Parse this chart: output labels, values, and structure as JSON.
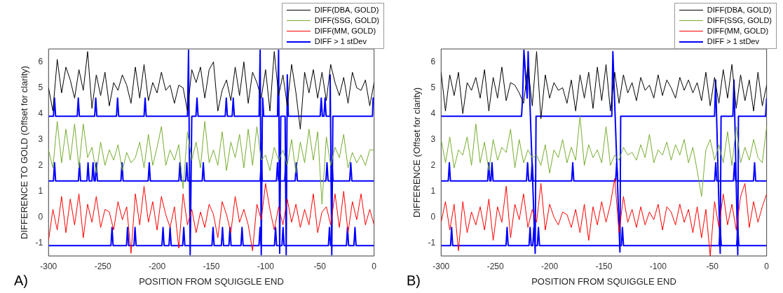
{
  "chart_data": [
    {
      "type": "line",
      "annotations": [
        "A)"
      ],
      "xlabel": "POSITION FROM SQUIGGLE END",
      "ylabel": "DIFFERENCE TO GOLD (Offset for clarity)",
      "legend": "top right",
      "xlim": [
        -300,
        0
      ],
      "xticks": [
        -300,
        -250,
        -200,
        -150,
        -100,
        -50,
        0
      ],
      "ylim": [
        -1.5,
        6.5
      ],
      "yticks": [
        -1,
        0,
        1,
        2,
        3,
        4,
        5,
        6
      ],
      "x": [
        -300,
        -296,
        -292,
        -288,
        -284,
        -280,
        -276,
        -272,
        -268,
        -264,
        -260,
        -256,
        -252,
        -248,
        -244,
        -240,
        -236,
        -232,
        -228,
        -224,
        -220,
        -216,
        -212,
        -208,
        -204,
        -200,
        -196,
        -192,
        -188,
        -184,
        -180,
        -176,
        -172,
        -168,
        -164,
        -160,
        -156,
        -152,
        -148,
        -144,
        -140,
        -136,
        -132,
        -128,
        -124,
        -120,
        -116,
        -112,
        -108,
        -104,
        -100,
        -96,
        -92,
        -88,
        -84,
        -80,
        -76,
        -72,
        -68,
        -64,
        -60,
        -56,
        -52,
        -48,
        -44,
        -40,
        -36,
        -32,
        -28,
        -24,
        -20,
        -16,
        -12,
        -8,
        -4,
        0
      ],
      "series": [
        {
          "name": "DIFF(DBA, GOLD)",
          "color": "#000000",
          "values": [
            5.0,
            4.1,
            6.1,
            4.8,
            5.8,
            5.3,
            4.6,
            5.7,
            4.9,
            6.4,
            4.2,
            5.5,
            4.7,
            5.6,
            4.3,
            5.2,
            4.9,
            5.5,
            5.1,
            4.4,
            5.8,
            4.6,
            5.9,
            4.5,
            5.2,
            4.8,
            5.6,
            4.9,
            5.1,
            4.4,
            5.1,
            5.0,
            4.1,
            5.7,
            5.2,
            5.8,
            4.6,
            5.7,
            6.0,
            4.1,
            4.9,
            5.3,
            4.5,
            5.8,
            4.7,
            6.0,
            4.4,
            5.6,
            5.2,
            4.6,
            5.7,
            4.1,
            6.4,
            4.7,
            5.5,
            4.3,
            5.9,
            4.8,
            3.4,
            5.6,
            4.8,
            5.7,
            4.6,
            5.6,
            4.5,
            5.9,
            5.2,
            4.7,
            5.4,
            4.4,
            5.6,
            5.0,
            4.9,
            5.3,
            4.3,
            5.2
          ]
        },
        {
          "name": "DIFF(SSG, GOLD)",
          "color": "#77ac30",
          "values": [
            2.6,
            1.9,
            3.7,
            2.1,
            3.4,
            2.2,
            3.6,
            1.9,
            3.6,
            2.3,
            2.7,
            1.7,
            2.9,
            2.0,
            2.6,
            2.2,
            2.8,
            1.8,
            2.5,
            2.1,
            2.3,
            2.9,
            1.9,
            3.2,
            2.0,
            2.7,
            3.5,
            2.0,
            2.6,
            2.2,
            2.8,
            1.1,
            3.3,
            2.2,
            2.9,
            1.9,
            3.7,
            2.1,
            2.6,
            2.0,
            3.3,
            1.8,
            2.9,
            2.3,
            3.2,
            1.9,
            3.4,
            2.0,
            3.5,
            2.2,
            2.4,
            1.8,
            2.7,
            2.2,
            2.6,
            2.0,
            3.0,
            1.7,
            2.9,
            2.1,
            3.4,
            2.2,
            3.3,
            0.5,
            3.1,
            2.0,
            2.7,
            2.3,
            3.2,
            1.9,
            2.5,
            2.1,
            2.4,
            2.0,
            2.6,
            2.6
          ]
        },
        {
          "name": "DIFF(MM, GOLD)",
          "color": "#ff0000",
          "values": [
            -0.9,
            0.3,
            -0.5,
            0.8,
            -0.6,
            0.7,
            -0.3,
            0.9,
            -0.8,
            0.5,
            -0.2,
            0.8,
            -0.4,
            0.3,
            0.2,
            -0.5,
            0.6,
            -0.1,
            0.4,
            -1.4,
            0.9,
            -0.3,
            1.2,
            -0.2,
            0.6,
            -0.5,
            0.8,
            0.1,
            -0.4,
            0.4,
            -1.2,
            0.9,
            -0.3,
            0.3,
            -0.6,
            0.2,
            -0.4,
            0.5,
            0.1,
            -0.8,
            0.6,
            0.1,
            -0.6,
            0.8,
            -0.2,
            0.3,
            -0.3,
            -1.3,
            0.5,
            -0.1,
            1.3,
            0.3,
            -0.5,
            0.4,
            -0.3,
            0.7,
            -0.2,
            0.5,
            -0.4,
            0.3,
            -0.3,
            0.9,
            -0.6,
            0.2,
            0.4,
            -0.3,
            0.9,
            -0.4,
            1.0,
            -0.6,
            0.6,
            -0.1,
            0.9,
            -0.3,
            0.3,
            -0.3
          ]
        },
        {
          "name": "DIFF > 1 stDev",
          "color": "#0000ff",
          "x": [
            -300,
            -295.5,
            -294.5,
            -293.5,
            -273.6,
            -272.6,
            -271.6,
            -257.5,
            -256.5,
            -255.5,
            -237.4,
            -236.4,
            -235.4,
            -212,
            -211,
            -210,
            -172,
            -171,
            -169.5,
            -168,
            -164.2,
            -163.2,
            -162.2,
            -137.2,
            -136.2,
            -135.2,
            -130.8,
            -129.8,
            -128.8,
            -106,
            -105,
            -104,
            -103,
            -102.7,
            -101.7,
            -89,
            -88,
            -87,
            -86,
            -82,
            -81,
            -80,
            -79,
            -49.7,
            -48.7,
            -47.7,
            -46.2,
            -45.2,
            -44.2,
            -41,
            -40.5,
            -39,
            -38,
            -1.5,
            -0.9,
            0
          ],
          "values": [
            3.9,
            3.9,
            4.6,
            3.9,
            3.9,
            4.6,
            3.9,
            3.9,
            4.6,
            3.9,
            3.9,
            4.6,
            3.9,
            3.9,
            4.6,
            3.9,
            3.9,
            6.45,
            -1.45,
            3.9,
            3.9,
            4.6,
            3.9,
            3.9,
            4.6,
            3.9,
            3.9,
            4.6,
            3.9,
            3.9,
            6.45,
            -1.45,
            3.9,
            4.6,
            3.9,
            3.9,
            6.45,
            -1.4,
            3.9,
            3.9,
            -1.45,
            5.5,
            3.9,
            3.9,
            4.6,
            3.9,
            3.9,
            4.6,
            3.9,
            3.9,
            5.5,
            -1.45,
            3.9,
            3.9,
            4.6,
            4.6
          ]
        },
        {
          "color": "#0000ff",
          "x": [
            -300,
            -295.5,
            -294.5,
            -293.5,
            -272.5,
            -271.5,
            -270.5,
            -264.6,
            -263.6,
            -262.6,
            -260,
            -259,
            -258,
            -257,
            -256,
            -255,
            -233.3,
            -232.3,
            -231.3,
            -208.2,
            -207.2,
            -206.2,
            -179.9,
            -178.9,
            -177.9,
            -173.6,
            -172.6,
            -171.6,
            -158.4,
            -157.4,
            -156.4,
            -105,
            -104,
            -103,
            -90,
            -89,
            -88,
            -82.4,
            -81.4,
            -80.4,
            -72.7,
            -71.7,
            -70.7,
            -44.4,
            -43.4,
            -42.4,
            -39.8,
            -38.8,
            -37.8,
            -22.5,
            -21.5,
            -20.5,
            0
          ],
          "values": [
            1.4,
            1.4,
            2.1,
            1.4,
            1.4,
            2.1,
            1.4,
            1.4,
            2.1,
            1.4,
            1.4,
            2.1,
            1.4,
            1.4,
            2.1,
            1.4,
            1.4,
            2.1,
            1.4,
            1.4,
            2.1,
            1.4,
            1.4,
            2.1,
            1.4,
            1.4,
            2.1,
            1.4,
            1.4,
            2.1,
            1.4,
            1.4,
            2.1,
            1.4,
            1.4,
            2.1,
            1.4,
            1.4,
            2.1,
            1.4,
            1.4,
            2.1,
            1.4,
            1.4,
            2.1,
            1.4,
            1.4,
            2.1,
            1.4,
            1.4,
            2.1,
            1.4,
            1.4
          ]
        },
        {
          "color": "#0000ff",
          "x": [
            -300,
            -242.5,
            -241.5,
            -240.5,
            -228.2,
            -227.2,
            -226.2,
            -221.3,
            -220.3,
            -219.3,
            -195.5,
            -194.5,
            -193.5,
            -189,
            -188,
            -187,
            -176.4,
            -175.4,
            -174.4,
            -149.4,
            -148.4,
            -147.4,
            -140.7,
            -139.7,
            -138.7,
            -133.8,
            -132.8,
            -131.8,
            -122.7,
            -121.7,
            -120.7,
            -106.1,
            -105.1,
            -104.1,
            -91.8,
            -90.8,
            -89.8,
            -84.9,
            -83.9,
            -82.9,
            -42.1,
            -41.1,
            -40.1,
            -25.5,
            -24.5,
            -23.5,
            -18.6,
            -17.6,
            -16.6,
            0
          ],
          "values": [
            -1.1,
            -1.1,
            -0.4,
            -1.1,
            -1.1,
            -0.4,
            -1.1,
            -1.1,
            -0.4,
            -1.1,
            -1.1,
            -0.4,
            -1.1,
            -1.1,
            -0.4,
            -1.1,
            -1.1,
            -0.4,
            -1.1,
            -1.1,
            -0.4,
            -1.1,
            -1.1,
            -0.4,
            -1.1,
            -1.1,
            -0.4,
            -1.1,
            -1.1,
            -0.4,
            -1.1,
            -1.1,
            -0.4,
            -1.1,
            -1.1,
            -0.4,
            -1.1,
            -1.1,
            -0.4,
            -1.1,
            -1.1,
            -0.4,
            -1.1,
            -1.1,
            -0.4,
            -1.1,
            -1.1,
            -0.4,
            -1.1,
            -1.1
          ]
        }
      ]
    },
    {
      "type": "line",
      "annotations": [
        "B)"
      ],
      "xlabel": "POSITION FROM SQUIGGLE END",
      "ylabel": "DIFFERENCE (Offset for clarity)",
      "legend": "top right",
      "xlim": [
        -300,
        0
      ],
      "xticks": [
        -300,
        -250,
        -200,
        -150,
        -100,
        -50,
        0
      ],
      "ylim": [
        -1.5,
        6.5
      ],
      "yticks": [
        -1,
        0,
        1,
        2,
        3,
        4,
        5,
        6
      ],
      "x": [
        -300,
        -296,
        -292,
        -288,
        -284,
        -280,
        -276,
        -272,
        -268,
        -264,
        -260,
        -256,
        -252,
        -248,
        -244,
        -240,
        -236,
        -232,
        -228,
        -224,
        -220,
        -216,
        -212,
        -208,
        -204,
        -200,
        -196,
        -192,
        -188,
        -184,
        -180,
        -176,
        -172,
        -168,
        -164,
        -160,
        -156,
        -152,
        -148,
        -144,
        -140,
        -136,
        -132,
        -128,
        -124,
        -120,
        -116,
        -112,
        -108,
        -104,
        -100,
        -96,
        -92,
        -88,
        -84,
        -80,
        -76,
        -72,
        -68,
        -64,
        -60,
        -56,
        -52,
        -48,
        -44,
        -40,
        -36,
        -32,
        -28,
        -24,
        -20,
        -16,
        -12,
        -8,
        -4,
        0
      ],
      "series": [
        {
          "name": "DIFF(DBA, GOLD)",
          "color": "#000000",
          "values": [
            5.6,
            4.1,
            5.5,
            4.7,
            5.6,
            4.0,
            5.2,
            4.9,
            5.4,
            4.6,
            5.7,
            4.1,
            5.4,
            4.6,
            5.8,
            4.5,
            5.2,
            5.1,
            4.8,
            4.4,
            5.8,
            4.3,
            6.4,
            3.8,
            5.5,
            4.6,
            5.2,
            4.9,
            5.0,
            4.4,
            5.3,
            4.1,
            5.5,
            4.6,
            5.6,
            4.2,
            5.8,
            4.5,
            5.9,
            4.1,
            5.6,
            4.4,
            5.5,
            4.8,
            5.2,
            4.5,
            5.4,
            4.9,
            5.1,
            4.6,
            5.5,
            4.7,
            5.3,
            5.0,
            4.6,
            5.4,
            4.9,
            5.3,
            4.8,
            5.2,
            4.5,
            5.6,
            4.3,
            5.4,
            4.4,
            5.7,
            4.6,
            5.9,
            4.2,
            5.5,
            4.5,
            5.3,
            4.1,
            5.6,
            4.3,
            5.1
          ]
        },
        {
          "name": "DIFF(SSG, GOLD)",
          "color": "#77ac30",
          "values": [
            3.0,
            2.1,
            3.1,
            1.9,
            2.6,
            2.4,
            3.1,
            2.0,
            3.6,
            2.1,
            2.9,
            1.8,
            3.0,
            2.2,
            2.7,
            2.5,
            3.4,
            1.9,
            3.0,
            2.1,
            2.6,
            2.3,
            2.4,
            2.0,
            2.8,
            1.7,
            2.6,
            2.3,
            3.0,
            2.1,
            2.7,
            2.2,
            3.9,
            2.0,
            2.8,
            2.3,
            2.6,
            2.1,
            3.5,
            2.0,
            2.4,
            2.2,
            2.7,
            2.4,
            2.5,
            2.2,
            2.8,
            2.3,
            3.2,
            2.1,
            2.6,
            2.4,
            2.9,
            2.2,
            2.8,
            2.4,
            3.0,
            2.1,
            2.7,
            1.8,
            0.8,
            2.6,
            3.0,
            2.2,
            2.8,
            2.1,
            3.3,
            2.0,
            3.5,
            2.1,
            2.7,
            2.2,
            3.0,
            2.3,
            2.1,
            3.5
          ]
        },
        {
          "name": "DIFF(MM, GOLD)",
          "color": "#ff0000",
          "values": [
            -0.2,
            0.6,
            -0.5,
            0.5,
            -1.3,
            0.6,
            -0.6,
            0.2,
            -0.3,
            0.4,
            -0.5,
            0.7,
            -0.9,
            0.4,
            -0.2,
            1.2,
            -0.8,
            0.5,
            -0.1,
            0.9,
            -0.4,
            0.3,
            -0.2,
            1.3,
            -0.5,
            0.5,
            0.0,
            -0.3,
            0.2,
            0.1,
            -0.4,
            0.3,
            -0.6,
            0.5,
            -0.9,
            0.4,
            -0.3,
            0.6,
            -0.2,
            0.5,
            1.5,
            -0.6,
            0.8,
            -0.2,
            0.3,
            -0.4,
            0.4,
            -0.3,
            0.2,
            -0.1,
            0.5,
            -0.5,
            0.4,
            0.2,
            -0.3,
            0.5,
            -0.2,
            0.3,
            -0.6,
            0.4,
            -0.8,
            0.3,
            -1.5,
            0.6,
            -0.4,
            0.9,
            -0.3,
            0.5,
            -0.5,
            0.8,
            1.3,
            -0.4,
            0.6,
            -0.2,
            0.4,
            0.9
          ]
        },
        {
          "name": "DIFF > 1 stDev",
          "color": "#0000ff",
          "x": [
            -300,
            -225.9,
            -224.9,
            -223.7,
            -220.7,
            -219.8,
            -213.3,
            -212.5,
            -142.7,
            -141.7,
            -135.2,
            -134.5,
            -48,
            -47,
            -42.8,
            -42,
            -31.1,
            -30.1,
            -26.6,
            -26,
            -1,
            0
          ],
          "values": [
            3.9,
            3.9,
            4.6,
            6.45,
            4.6,
            6.4,
            -1.4,
            3.9,
            3.9,
            6.4,
            -1.35,
            3.9,
            3.9,
            5.3,
            -1.4,
            3.9,
            3.9,
            5.3,
            -1.45,
            3.9,
            3.9,
            4.6
          ]
        },
        {
          "color": "#0000ff",
          "x": [
            -300,
            -293.4,
            -292.4,
            -291.4,
            -257.1,
            -256.1,
            -255.1,
            -254.1,
            -253.1,
            -252.1,
            -221.3,
            -220.3,
            -219.3,
            -217.1,
            -216.1,
            -215.1,
            -179.7,
            -178.7,
            -177.7,
            -139.2,
            -138.2,
            -137.2,
            -47.9,
            -46.9,
            -45.9,
            -30.6,
            -29.6,
            -28.6,
            -12.1,
            -11.1,
            -10.1,
            0
          ],
          "values": [
            1.4,
            1.4,
            2.1,
            1.4,
            1.4,
            2.1,
            1.4,
            1.4,
            2.1,
            1.4,
            1.4,
            2.1,
            1.4,
            1.4,
            2.1,
            1.4,
            1.4,
            2.1,
            1.4,
            1.4,
            2.1,
            1.4,
            1.4,
            2.1,
            1.4,
            1.4,
            2.1,
            1.4,
            1.4,
            2.1,
            1.4,
            1.4
          ]
        },
        {
          "color": "#0000ff",
          "x": [
            -300,
            -291.3,
            -290.3,
            -289.3,
            -240.2,
            -239.2,
            -238.2,
            -219,
            -218,
            -217,
            -215.5,
            -214.5,
            -213.5,
            -211.3,
            -210.3,
            -209.3,
            -133.9,
            -132.9,
            -131.9,
            -43.8,
            -42.8,
            -41.8,
            -27.6,
            -26.6,
            -25.6,
            0
          ],
          "values": [
            -1.1,
            -1.1,
            -0.4,
            -1.1,
            -1.1,
            -0.4,
            -1.1,
            -1.1,
            -0.4,
            -1.1,
            -1.1,
            -0.4,
            -1.1,
            -1.1,
            -0.4,
            -1.1,
            -1.1,
            -0.4,
            -1.1,
            -1.1,
            -0.4,
            -1.1,
            -1.1,
            -0.4,
            -1.1,
            -1.1
          ]
        }
      ]
    }
  ]
}
